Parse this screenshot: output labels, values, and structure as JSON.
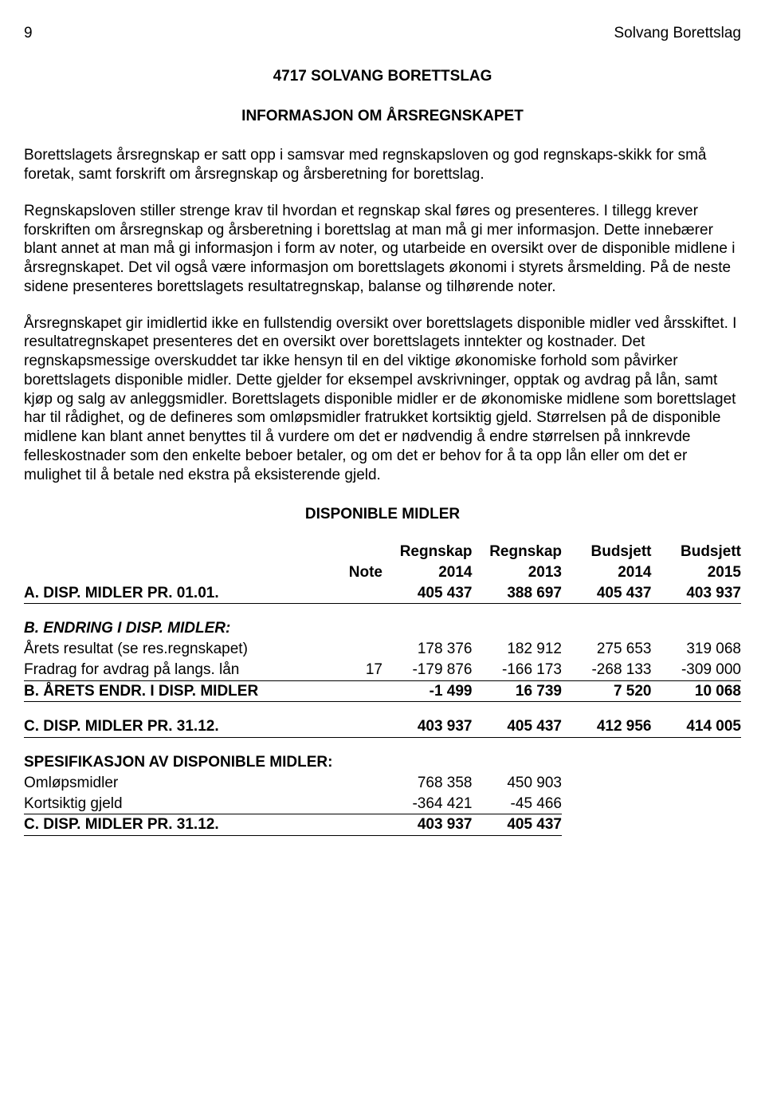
{
  "header": {
    "page_number": "9",
    "doc_name": "Solvang Borettslag"
  },
  "titles": {
    "main": "4717 SOLVANG BORETTSLAG",
    "sub": "INFORMASJON OM ÅRSREGNSKAPET"
  },
  "paragraphs": {
    "p1": "Borettslagets årsregnskap er satt opp i samsvar med regnskapsloven og god regnskaps-skikk for små foretak, samt forskrift om årsregnskap og årsberetning for borettslag.",
    "p2": "Regnskapsloven stiller strenge krav til hvordan et regnskap skal føres og presenteres. I tillegg krever forskriften om årsregnskap og årsberetning i borettslag at man må gi mer informasjon. Dette innebærer blant annet at man må gi informasjon i form av noter, og utarbeide en oversikt over de disponible midlene i årsregnskapet. Det vil også være informasjon om borettslagets økonomi i styrets årsmelding. På de neste sidene presenteres borettslagets resultatregnskap, balanse og tilhørende noter.",
    "p3": "Årsregnskapet gir imidlertid ikke en fullstendig oversikt over borettslagets disponible midler ved årsskiftet. I resultatregnskapet presenteres det en oversikt over borettslagets inntekter og kostnader. Det regnskapsmessige overskuddet tar ikke hensyn til en del viktige økonomiske forhold som påvirker borettslagets disponible midler. Dette gjelder for eksempel avskrivninger, opptak og avdrag på lån, samt kjøp og salg av anleggsmidler. Borettslagets disponible midler er de økonomiske midlene som borettslaget har til rådighet, og de defineres som omløpsmidler fratrukket kortsiktig gjeld. Størrelsen på de disponible midlene kan blant annet benyttes til å vurdere om det er nødvendig å endre størrelsen på innkrevde felleskostnader som den enkelte beboer betaler, og om det er behov for å ta opp lån eller om det er mulighet til å betale ned ekstra på eksisterende gjeld."
  },
  "table_heading": "DISPONIBLE MIDLER",
  "columns": {
    "note": "Note",
    "c1_top": "Regnskap",
    "c1_bot": "2014",
    "c2_top": "Regnskap",
    "c2_bot": "2013",
    "c3_top": "Budsjett",
    "c3_bot": "2014",
    "c4_top": "Budsjett",
    "c4_bot": "2015"
  },
  "rows": {
    "A": {
      "label": "A.  DISP. MIDLER PR. 01.01.",
      "note": "",
      "v1": "405 437",
      "v2": "388 697",
      "v3": "405 437",
      "v4": "403 937"
    },
    "B_heading": "B. ENDRING I DISP. MIDLER:",
    "B1": {
      "label": "Årets resultat (se res.regnskapet)",
      "note": "",
      "v1": "178 376",
      "v2": "182 912",
      "v3": "275 653",
      "v4": "319 068"
    },
    "B2": {
      "label": "Fradrag for avdrag på langs. lån",
      "note": "17",
      "v1": "-179 876",
      "v2": "-166 173",
      "v3": "-268 133",
      "v4": "-309 000"
    },
    "B_sum": {
      "label": "B. ÅRETS ENDR. I DISP. MIDLER",
      "note": "",
      "v1": "-1 499",
      "v2": "16 739",
      "v3": "7 520",
      "v4": "10 068"
    },
    "C_sum": {
      "label": "C. DISP. MIDLER PR. 31.12.",
      "note": "",
      "v1": "403 937",
      "v2": "405 437",
      "v3": "412 956",
      "v4": "414 005"
    },
    "spec_heading": "SPESIFIKASJON AV DISPONIBLE MIDLER:",
    "S1": {
      "label": "Omløpsmidler",
      "note": "",
      "v1": "768 358",
      "v2": "450 903"
    },
    "S2": {
      "label": "Kortsiktig gjeld",
      "note": "",
      "v1": "-364 421",
      "v2": "-45 466"
    },
    "S_sum": {
      "label": "C. DISP. MIDLER PR. 31.12.",
      "note": "",
      "v1": "403 937",
      "v2": "405 437"
    }
  }
}
